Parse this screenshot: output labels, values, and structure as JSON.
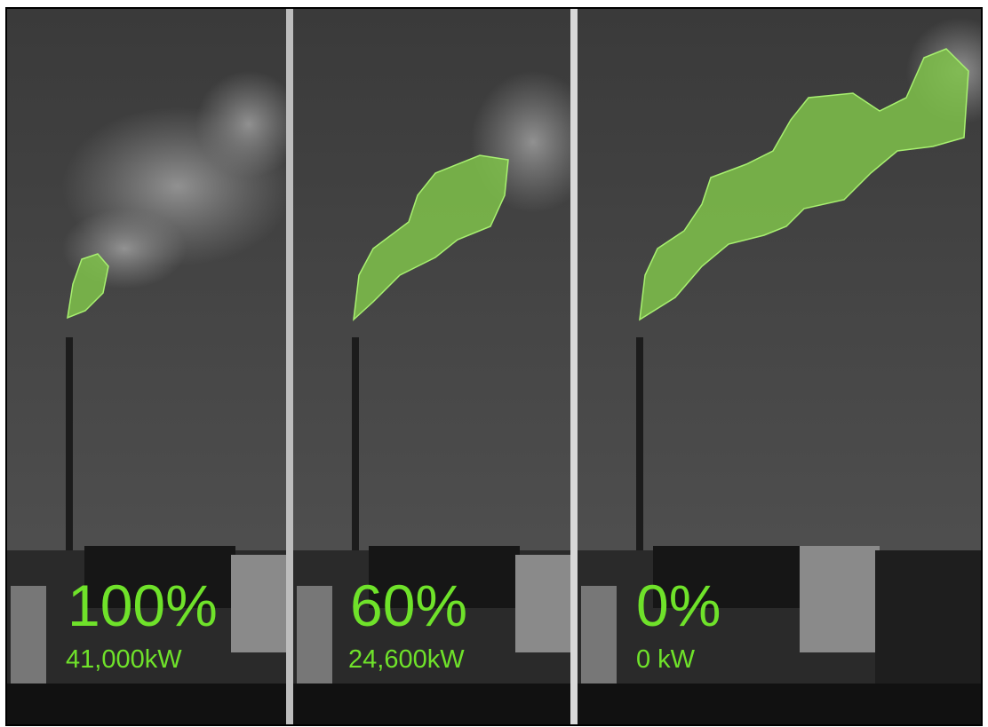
{
  "panels": [
    {
      "percent": "100%",
      "power": "41,000kW"
    },
    {
      "percent": "60%",
      "power": "24,600kW"
    },
    {
      "percent": "0%",
      "power": "0 kW"
    }
  ]
}
